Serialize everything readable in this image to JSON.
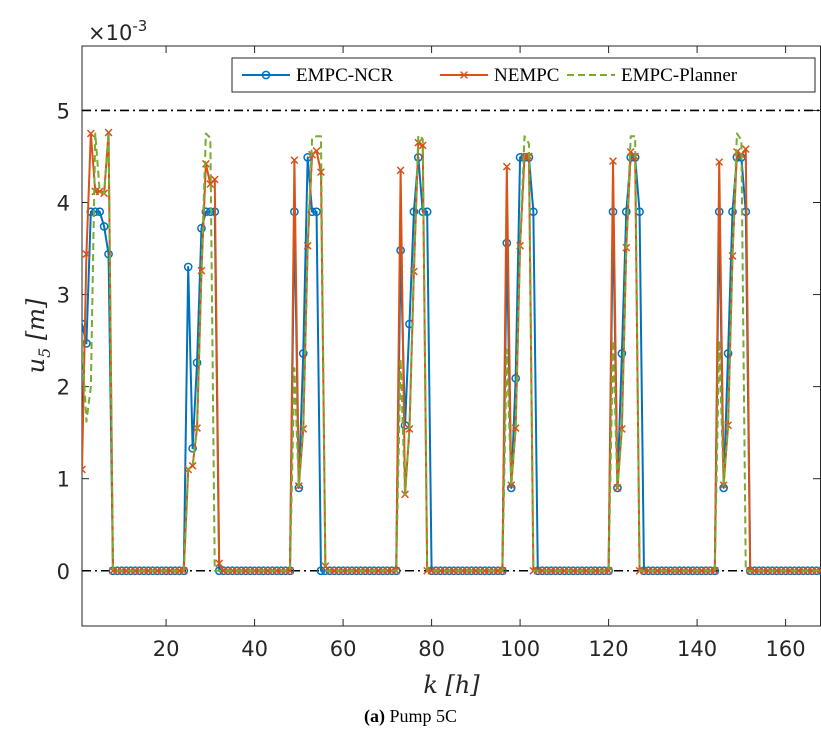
{
  "caption": {
    "label": "(a)",
    "text": "Pump 5C"
  },
  "chart_data": {
    "type": "line",
    "xlabel": "k [h]",
    "ylabel": "u5 [m]",
    "y_exponent_label": "×10-3",
    "xlim": [
      1,
      168
    ],
    "ylim": [
      -0.6,
      5.7
    ],
    "xticks": [
      20,
      40,
      60,
      80,
      100,
      120,
      140,
      160
    ],
    "yticks": [
      0,
      1,
      2,
      3,
      4,
      5
    ],
    "grid": false,
    "legend_position": "top-right",
    "reference_lines": [
      {
        "y": 5,
        "style": "dash-dot",
        "color": "#000000"
      },
      {
        "y": 0,
        "style": "dash-dot",
        "color": "#000000"
      }
    ],
    "series": [
      {
        "name": "EMPC-NCR",
        "color": "#0072BD",
        "marker": "circle",
        "style": "solid",
        "x": [
          1,
          2,
          3,
          4,
          5,
          6,
          7,
          8,
          9,
          10,
          11,
          12,
          13,
          14,
          15,
          16,
          17,
          18,
          19,
          20,
          21,
          22,
          23,
          24,
          25,
          26,
          27,
          28,
          29,
          30,
          31,
          32,
          33,
          34,
          35,
          36,
          37,
          38,
          39,
          40,
          41,
          42,
          43,
          44,
          45,
          46,
          47,
          48,
          49,
          50,
          51,
          52,
          53,
          54,
          55,
          56,
          57,
          58,
          59,
          60,
          61,
          62,
          63,
          64,
          65,
          66,
          67,
          68,
          69,
          70,
          71,
          72,
          73,
          74,
          75,
          76,
          77,
          78,
          79,
          80,
          81,
          82,
          83,
          84,
          85,
          86,
          87,
          88,
          89,
          90,
          91,
          92,
          93,
          94,
          95,
          96,
          97,
          98,
          99,
          100,
          101,
          102,
          103,
          104,
          105,
          106,
          107,
          108,
          109,
          110,
          111,
          112,
          113,
          114,
          115,
          116,
          117,
          118,
          119,
          120,
          121,
          122,
          123,
          124,
          125,
          126,
          127,
          128,
          129,
          130,
          131,
          132,
          133,
          134,
          135,
          136,
          137,
          138,
          139,
          140,
          141,
          142,
          143,
          144,
          145,
          146,
          147,
          148,
          149,
          150,
          151,
          152,
          153,
          154,
          155,
          156,
          157,
          158,
          159,
          160,
          161,
          162,
          163,
          164,
          165,
          166,
          167,
          168
        ],
        "y": [
          2.68,
          2.47,
          3.9,
          3.9,
          3.9,
          3.74,
          3.44,
          0,
          0,
          0,
          0,
          0,
          0,
          0,
          0,
          0,
          0,
          0,
          0,
          0,
          0,
          0,
          0,
          0,
          3.3,
          1.33,
          2.26,
          3.72,
          3.9,
          3.9,
          3.9,
          0,
          0,
          0,
          0,
          0,
          0,
          0,
          0,
          0,
          0,
          0,
          0,
          0,
          0,
          0,
          0,
          0,
          3.9,
          0.9,
          2.36,
          4.49,
          3.9,
          3.9,
          0,
          0,
          0,
          0,
          0,
          0,
          0,
          0,
          0,
          0,
          0,
          0,
          0,
          0,
          0,
          0,
          0,
          0,
          3.48,
          1.58,
          2.68,
          3.9,
          4.49,
          3.9,
          3.9,
          0,
          0,
          0,
          0,
          0,
          0,
          0,
          0,
          0,
          0,
          0,
          0,
          0,
          0,
          0,
          0,
          0,
          3.56,
          0.9,
          2.09,
          4.49,
          4.49,
          4.49,
          3.9,
          0,
          0,
          0,
          0,
          0,
          0,
          0,
          0,
          0,
          0,
          0,
          0,
          0,
          0,
          0,
          0,
          0,
          3.9,
          0.9,
          2.36,
          3.9,
          4.49,
          4.49,
          3.9,
          0,
          0,
          0,
          0,
          0,
          0,
          0,
          0,
          0,
          0,
          0,
          0,
          0,
          0,
          0,
          0,
          0,
          3.9,
          0.9,
          2.36,
          3.9,
          4.49,
          4.49,
          3.9,
          0,
          0,
          0,
          0,
          0,
          0,
          0,
          0,
          0,
          0,
          0,
          0,
          0,
          0,
          0,
          0,
          0
        ]
      },
      {
        "name": "NEMPC",
        "color": "#D95319",
        "marker": "x",
        "style": "solid",
        "x": [
          1,
          2,
          3,
          4,
          5,
          6,
          7,
          8,
          9,
          10,
          11,
          12,
          13,
          14,
          15,
          16,
          17,
          18,
          19,
          20,
          21,
          22,
          23,
          24,
          25,
          26,
          27,
          28,
          29,
          30,
          31,
          32,
          33,
          34,
          35,
          36,
          37,
          38,
          39,
          40,
          41,
          42,
          43,
          44,
          45,
          46,
          47,
          48,
          49,
          50,
          51,
          52,
          53,
          54,
          55,
          56,
          57,
          58,
          59,
          60,
          61,
          62,
          63,
          64,
          65,
          66,
          67,
          68,
          69,
          70,
          71,
          72,
          73,
          74,
          75,
          76,
          77,
          78,
          79,
          80,
          81,
          82,
          83,
          84,
          85,
          86,
          87,
          88,
          89,
          90,
          91,
          92,
          93,
          94,
          95,
          96,
          97,
          98,
          99,
          100,
          101,
          102,
          103,
          104,
          105,
          106,
          107,
          108,
          109,
          110,
          111,
          112,
          113,
          114,
          115,
          116,
          117,
          118,
          119,
          120,
          121,
          122,
          123,
          124,
          125,
          126,
          127,
          128,
          129,
          130,
          131,
          132,
          133,
          134,
          135,
          136,
          137,
          138,
          139,
          140,
          141,
          142,
          143,
          144,
          145,
          146,
          147,
          148,
          149,
          150,
          151,
          152,
          153,
          154,
          155,
          156,
          157,
          158,
          159,
          160,
          161,
          162,
          163,
          164,
          165,
          166,
          167,
          168
        ],
        "y": [
          1.1,
          3.44,
          4.75,
          4.12,
          4.12,
          4.1,
          4.76,
          0,
          0,
          0,
          0,
          0,
          0,
          0,
          0,
          0,
          0,
          0,
          0,
          0,
          0,
          0,
          0,
          0,
          1.1,
          1.14,
          1.55,
          3.26,
          4.42,
          4.2,
          4.25,
          0.08,
          0,
          0,
          0,
          0,
          0,
          0,
          0,
          0,
          0,
          0,
          0,
          0,
          0,
          0,
          0,
          0,
          4.46,
          0.92,
          1.54,
          3.53,
          4.52,
          4.56,
          4.33,
          0.05,
          0,
          0,
          0,
          0,
          0,
          0,
          0,
          0,
          0,
          0,
          0,
          0,
          0,
          0,
          0,
          0,
          4.35,
          0.83,
          1.54,
          3.25,
          4.65,
          4.62,
          0,
          0,
          0,
          0,
          0,
          0,
          0,
          0,
          0,
          0,
          0,
          0,
          0,
          0,
          0,
          0,
          0,
          0,
          4.39,
          0.93,
          1.55,
          3.53,
          4.5,
          4.5,
          0,
          0,
          0,
          0,
          0,
          0,
          0,
          0,
          0,
          0,
          0,
          0,
          0,
          0,
          0,
          0,
          0,
          0,
          4.45,
          0.9,
          1.54,
          3.51,
          4.55,
          4.5,
          0,
          0,
          0,
          0,
          0,
          0,
          0,
          0,
          0,
          0,
          0,
          0,
          0,
          0,
          0,
          0,
          0,
          0,
          4.44,
          0.93,
          1.58,
          3.42,
          4.55,
          4.52,
          4.58,
          0,
          0,
          0,
          0,
          0,
          0,
          0,
          0,
          0,
          0,
          0,
          0,
          0,
          0,
          0,
          0,
          0
        ]
      },
      {
        "name": "EMPC-Planner",
        "color": "#77AC30",
        "marker": "none",
        "style": "dashed",
        "x": [
          1,
          2,
          3,
          4,
          5,
          6,
          7,
          8,
          9,
          10,
          11,
          12,
          13,
          14,
          15,
          16,
          17,
          18,
          19,
          20,
          21,
          22,
          23,
          24,
          25,
          26,
          27,
          28,
          29,
          30,
          31,
          32,
          33,
          34,
          35,
          36,
          37,
          38,
          39,
          40,
          41,
          42,
          43,
          44,
          45,
          46,
          47,
          48,
          49,
          50,
          51,
          52,
          53,
          54,
          55,
          56,
          57,
          58,
          59,
          60,
          61,
          62,
          63,
          64,
          65,
          66,
          67,
          68,
          69,
          70,
          71,
          72,
          73,
          74,
          75,
          76,
          77,
          78,
          79,
          80,
          81,
          82,
          83,
          84,
          85,
          86,
          87,
          88,
          89,
          90,
          91,
          92,
          93,
          94,
          95,
          96,
          97,
          98,
          99,
          100,
          101,
          102,
          103,
          104,
          105,
          106,
          107,
          108,
          109,
          110,
          111,
          112,
          113,
          114,
          115,
          116,
          117,
          118,
          119,
          120,
          121,
          122,
          123,
          124,
          125,
          126,
          127,
          128,
          129,
          130,
          131,
          132,
          133,
          134,
          135,
          136,
          137,
          138,
          139,
          140,
          141,
          142,
          143,
          144,
          145,
          146,
          147,
          148,
          149,
          150,
          151,
          152,
          153,
          154,
          155,
          156,
          157,
          158,
          159,
          160,
          161,
          162,
          163,
          164,
          165,
          166,
          167,
          168
        ],
        "y": [
          2.5,
          1.62,
          2.0,
          4.75,
          4.12,
          4.1,
          4.76,
          0,
          0,
          0,
          0,
          0,
          0,
          0,
          0,
          0,
          0,
          0,
          0,
          0,
          0,
          0,
          0,
          0,
          1.1,
          1.14,
          1.55,
          3.26,
          4.75,
          4.7,
          0,
          0,
          0,
          0,
          0,
          0,
          0,
          0,
          0,
          0,
          0,
          0,
          0,
          0,
          0,
          0,
          0,
          0,
          2.2,
          0.92,
          1.54,
          3.53,
          4.7,
          4.72,
          4.72,
          0,
          0,
          0,
          0,
          0,
          0,
          0,
          0,
          0,
          0,
          0,
          0,
          0,
          0,
          0,
          0,
          0,
          2.3,
          0.83,
          1.54,
          3.25,
          4.73,
          4.69,
          0,
          0,
          0,
          0,
          0,
          0,
          0,
          0,
          0,
          0,
          0,
          0,
          0,
          0,
          0,
          0,
          0,
          0,
          2.4,
          0.93,
          1.55,
          3.53,
          4.72,
          4.64,
          0,
          0,
          0,
          0,
          0,
          0,
          0,
          0,
          0,
          0,
          0,
          0,
          0,
          0,
          0,
          0,
          0,
          0,
          2.5,
          0.9,
          1.54,
          3.51,
          4.72,
          4.72,
          0,
          0,
          0,
          0,
          0,
          0,
          0,
          0,
          0,
          0,
          0,
          0,
          0,
          0,
          0,
          0,
          0,
          0,
          2.5,
          0.93,
          1.58,
          3.42,
          4.75,
          4.68,
          0,
          0,
          0,
          0,
          0,
          0,
          0,
          0,
          0,
          0,
          0,
          0,
          0,
          0,
          0,
          0,
          0,
          0
        ]
      }
    ]
  }
}
